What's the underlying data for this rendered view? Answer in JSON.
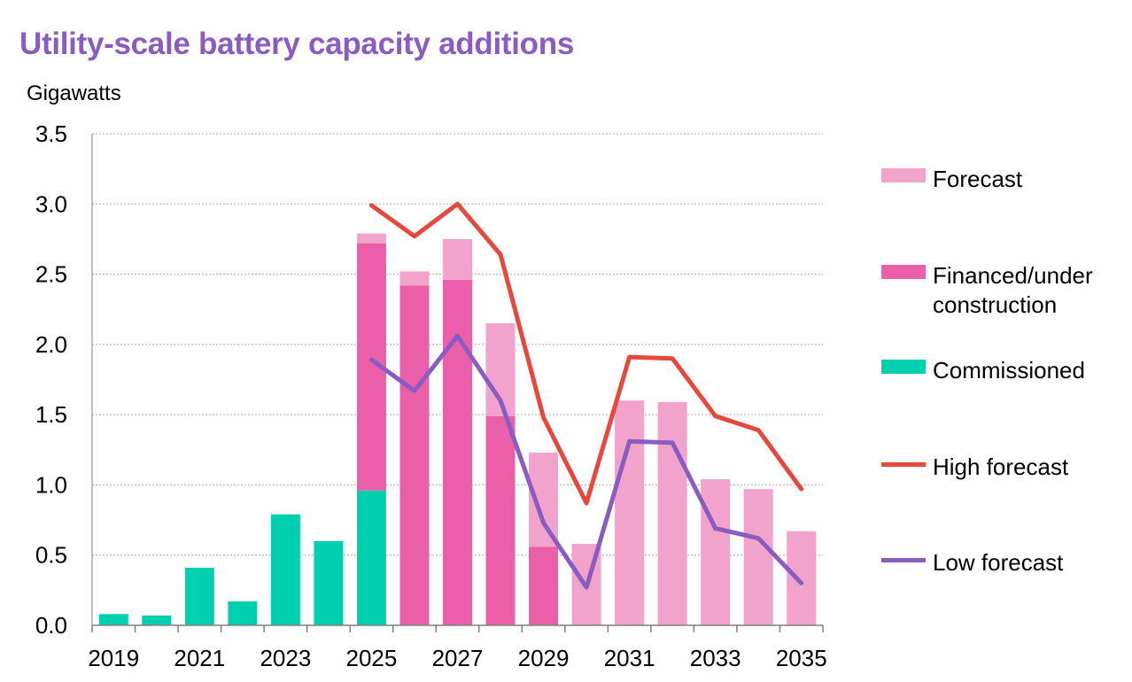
{
  "chart_data": {
    "type": "bar",
    "title": "Utility-scale battery capacity additions",
    "ylabel": "Gigawatts",
    "xlabel": "",
    "ylim": [
      0,
      3.5
    ],
    "yticks": [
      "0.0",
      "0.5",
      "1.0",
      "1.5",
      "2.0",
      "2.5",
      "3.0",
      "3.5"
    ],
    "categories": [
      "2019",
      "2020",
      "2021",
      "2022",
      "2023",
      "2024",
      "2025",
      "2026",
      "2027",
      "2028",
      "2029",
      "2030",
      "2031",
      "2032",
      "2033",
      "2034",
      "2035"
    ],
    "xtick_labels": [
      "2019",
      "2021",
      "2023",
      "2025",
      "2027",
      "2029",
      "2031",
      "2033",
      "2035"
    ],
    "stacked": true,
    "grid": "horizontal dashed",
    "legend_position": "right",
    "series": [
      {
        "name": "Commissioned",
        "kind": "bar",
        "color": "#00d0b0",
        "values": [
          0.08,
          0.07,
          0.41,
          0.17,
          0.79,
          0.6,
          0.96,
          0,
          0,
          0,
          0,
          0,
          0,
          0,
          0,
          0,
          0
        ]
      },
      {
        "name": "Financed/under construction",
        "kind": "bar",
        "color": "#ea5fa8",
        "values": [
          0,
          0,
          0,
          0,
          0,
          0,
          1.76,
          2.42,
          2.46,
          1.49,
          0.56,
          0,
          0,
          0,
          0,
          0,
          0
        ]
      },
      {
        "name": "Forecast",
        "kind": "bar",
        "color": "#f2a3cc",
        "values": [
          0,
          0,
          0,
          0,
          0,
          0,
          0.07,
          0.1,
          0.29,
          0.66,
          0.67,
          0.58,
          1.6,
          1.59,
          1.04,
          0.97,
          0.67
        ]
      },
      {
        "name": "High forecast",
        "kind": "line",
        "color": "#e8473c",
        "values": [
          null,
          null,
          null,
          null,
          null,
          null,
          2.99,
          2.77,
          3.0,
          2.64,
          1.48,
          0.87,
          1.91,
          1.9,
          1.49,
          1.39,
          0.97
        ]
      },
      {
        "name": "Low forecast",
        "kind": "line",
        "color": "#8a5cc2",
        "values": [
          null,
          null,
          null,
          null,
          null,
          null,
          1.89,
          1.67,
          2.06,
          1.6,
          0.73,
          0.27,
          1.31,
          1.3,
          0.69,
          0.62,
          0.3
        ]
      }
    ]
  },
  "legend": {
    "items": [
      {
        "label": "Forecast",
        "color": "#f2a3cc",
        "kind": "swatch"
      },
      {
        "label": "Financed/under construction",
        "color": "#ea5fa8",
        "kind": "swatch"
      },
      {
        "label": "Commissioned",
        "color": "#00d0b0",
        "kind": "swatch"
      },
      {
        "label": "High forecast",
        "color": "#e8473c",
        "kind": "line"
      },
      {
        "label": "Low forecast",
        "color": "#8a5cc2",
        "kind": "line"
      }
    ]
  }
}
